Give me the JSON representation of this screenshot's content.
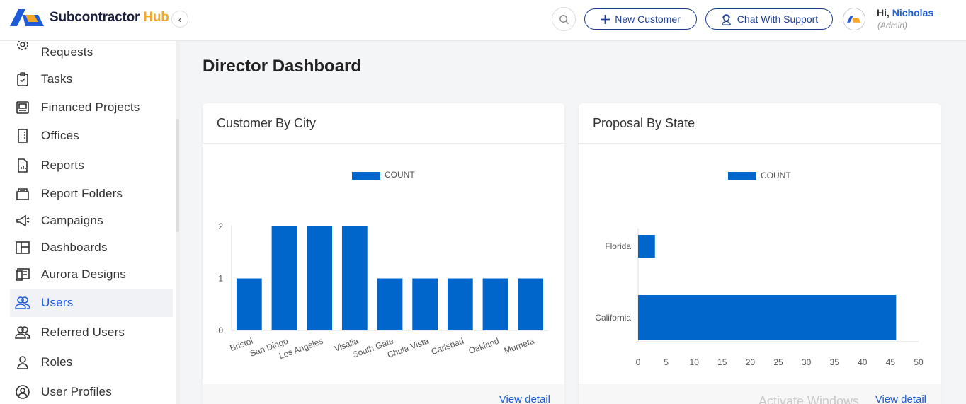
{
  "app": {
    "logo_main": "Subcontractor",
    "logo_accent": "Hub"
  },
  "header": {
    "new_customer": "New Customer",
    "chat_support": "Chat With Support",
    "greeting": "Hi,",
    "user_name": "Nicholas",
    "user_role": "(Admin)"
  },
  "sidebar": {
    "items": [
      {
        "label": "Requests",
        "icon": "gear-icon"
      },
      {
        "label": "Tasks",
        "icon": "clipboard-icon"
      },
      {
        "label": "Financed Projects",
        "icon": "document-icon"
      },
      {
        "label": "Offices",
        "icon": "building-icon"
      },
      {
        "label": "Reports",
        "icon": "report-icon"
      },
      {
        "label": "Report Folders",
        "icon": "folder-icon"
      },
      {
        "label": "Campaigns",
        "icon": "megaphone-icon"
      },
      {
        "label": "Dashboards",
        "icon": "dashboard-icon"
      },
      {
        "label": "Aurora Designs",
        "icon": "design-icon"
      },
      {
        "label": "Users",
        "icon": "users-icon",
        "active": true
      },
      {
        "label": "Referred Users",
        "icon": "referred-users-icon"
      },
      {
        "label": "Roles",
        "icon": "user-icon"
      },
      {
        "label": "User Profiles",
        "icon": "user-profile-icon"
      }
    ]
  },
  "main": {
    "title": "Director Dashboard",
    "view_detail": "View detail",
    "watermark": "Activate Windows"
  },
  "colors": {
    "bar": "#0066cc",
    "accent": "#1e5bd8",
    "brand_dark": "#1e3d8f"
  },
  "chart_data": [
    {
      "type": "bar",
      "title": "Customer By City",
      "categories": [
        "Bristol",
        "San Diego",
        "Los Angeles",
        "Visalia",
        "South Gate",
        "Chula Vista",
        "Carlsbad",
        "Oakland",
        "Murrieta"
      ],
      "series": [
        {
          "name": "COUNT",
          "values": [
            1,
            2,
            2,
            2,
            1,
            1,
            1,
            1,
            1
          ]
        }
      ],
      "ylim": [
        0,
        2
      ],
      "yticks": [
        0,
        1,
        2
      ],
      "legend": "top"
    },
    {
      "type": "bar",
      "orientation": "horizontal",
      "title": "Proposal By State",
      "categories": [
        "Florida",
        "California"
      ],
      "series": [
        {
          "name": "COUNT",
          "values": [
            3,
            46
          ]
        }
      ],
      "xlim": [
        0,
        50
      ],
      "xticks": [
        0,
        5,
        10,
        15,
        20,
        25,
        30,
        35,
        40,
        45,
        50
      ],
      "legend": "top"
    }
  ]
}
